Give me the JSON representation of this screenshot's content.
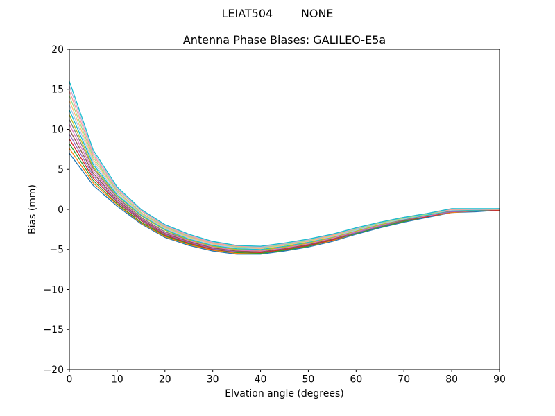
{
  "header": {
    "suptitle": "LEIAT504        NONE",
    "title": "Antenna Phase Biases: GALILEO-E5a"
  },
  "chart_data": {
    "type": "line",
    "suptitle": "LEIAT504        NONE",
    "title": "Antenna Phase Biases: GALILEO-E5a",
    "xlabel": "Elvation angle (degrees)",
    "ylabel": "Bias (mm)",
    "xlim": [
      0,
      90
    ],
    "ylim": [
      -20,
      20
    ],
    "xticks": [
      0,
      10,
      20,
      30,
      40,
      50,
      60,
      70,
      80,
      90
    ],
    "yticks": [
      -20,
      -15,
      -10,
      -5,
      0,
      5,
      10,
      15,
      20
    ],
    "grid": false,
    "legend": "none",
    "frame_color": "#000000",
    "x": [
      0,
      5,
      10,
      15,
      20,
      25,
      30,
      35,
      40,
      45,
      50,
      55,
      60,
      65,
      70,
      75,
      80,
      85,
      90
    ],
    "series": [
      {
        "name": "curve-01",
        "color": "#1f77b4",
        "values": [
          7.0,
          3.0,
          0.4,
          -1.8,
          -3.5,
          -4.5,
          -5.2,
          -5.6,
          -5.6,
          -5.2,
          -4.7,
          -4.0,
          -3.1,
          -2.3,
          -1.6,
          -1.0,
          -0.4,
          -0.3,
          -0.1
        ]
      },
      {
        "name": "curve-02",
        "color": "#ff7f0e",
        "values": [
          7.6,
          3.3,
          0.6,
          -1.7,
          -3.4,
          -4.4,
          -5.1,
          -5.5,
          -5.5,
          -5.1,
          -4.6,
          -3.9,
          -3.0,
          -2.2,
          -1.5,
          -0.9,
          -0.4,
          -0.2,
          -0.1
        ]
      },
      {
        "name": "curve-03",
        "color": "#2ca02c",
        "values": [
          8.2,
          3.6,
          0.7,
          -1.6,
          -3.3,
          -4.3,
          -5.0,
          -5.4,
          -5.5,
          -5.1,
          -4.6,
          -3.8,
          -3.0,
          -2.2,
          -1.5,
          -0.9,
          -0.3,
          -0.2,
          -0.1
        ]
      },
      {
        "name": "curve-04",
        "color": "#d62728",
        "values": [
          8.8,
          3.9,
          0.9,
          -1.4,
          -3.2,
          -4.2,
          -5.0,
          -5.3,
          -5.4,
          -5.0,
          -4.5,
          -3.8,
          -2.9,
          -2.1,
          -1.4,
          -0.9,
          -0.3,
          -0.2,
          -0.1
        ]
      },
      {
        "name": "curve-05",
        "color": "#9467bd",
        "values": [
          9.4,
          4.2,
          1.0,
          -1.3,
          -3.1,
          -4.1,
          -4.9,
          -5.3,
          -5.3,
          -4.9,
          -4.4,
          -3.7,
          -2.9,
          -2.1,
          -1.4,
          -0.8,
          -0.3,
          -0.2,
          0.0
        ]
      },
      {
        "name": "curve-06",
        "color": "#8c564b",
        "values": [
          10.0,
          4.5,
          1.2,
          -1.2,
          -3.0,
          -4.0,
          -4.8,
          -5.2,
          -5.3,
          -4.9,
          -4.4,
          -3.7,
          -2.8,
          -2.0,
          -1.4,
          -0.8,
          -0.2,
          -0.2,
          0.0
        ]
      },
      {
        "name": "curve-07",
        "color": "#e377c2",
        "values": [
          10.6,
          4.8,
          1.4,
          -1.1,
          -2.9,
          -3.9,
          -4.7,
          -5.1,
          -5.2,
          -4.8,
          -4.3,
          -3.6,
          -2.8,
          -2.0,
          -1.3,
          -0.8,
          -0.2,
          -0.1,
          0.0
        ]
      },
      {
        "name": "curve-08",
        "color": "#7f7f7f",
        "values": [
          11.2,
          5.1,
          1.5,
          -1.0,
          -2.8,
          -3.8,
          -4.6,
          -5.0,
          -5.1,
          -4.7,
          -4.2,
          -3.5,
          -2.7,
          -1.9,
          -1.3,
          -0.7,
          -0.2,
          -0.1,
          0.0
        ]
      },
      {
        "name": "curve-09",
        "color": "#bcbd22",
        "values": [
          11.8,
          5.3,
          1.7,
          -0.8,
          -2.6,
          -3.8,
          -4.6,
          -5.0,
          -5.1,
          -4.7,
          -4.2,
          -3.5,
          -2.7,
          -1.9,
          -1.2,
          -0.7,
          -0.1,
          -0.1,
          0.0
        ]
      },
      {
        "name": "curve-10",
        "color": "#17becf",
        "values": [
          12.4,
          5.6,
          1.8,
          -0.7,
          -2.5,
          -3.7,
          -4.5,
          -4.9,
          -5.0,
          -4.6,
          -4.1,
          -3.4,
          -2.6,
          -1.8,
          -1.2,
          -0.7,
          -0.1,
          -0.1,
          0.0
        ]
      },
      {
        "name": "curve-11",
        "color": "#aec7e8",
        "values": [
          13.0,
          5.9,
          2.0,
          -0.6,
          -2.4,
          -3.6,
          -4.4,
          -4.8,
          -4.9,
          -4.5,
          -4.0,
          -3.4,
          -2.6,
          -1.8,
          -1.2,
          -0.6,
          -0.1,
          0.0,
          0.0
        ]
      },
      {
        "name": "curve-12",
        "color": "#ffbb78",
        "values": [
          13.6,
          6.2,
          2.2,
          -0.5,
          -2.3,
          -3.5,
          -4.3,
          -4.7,
          -4.9,
          -4.5,
          -4.0,
          -3.3,
          -2.5,
          -1.7,
          -1.1,
          -0.6,
          0.0,
          0.0,
          0.0
        ]
      },
      {
        "name": "curve-13",
        "color": "#98df8a",
        "values": [
          14.2,
          6.5,
          2.3,
          -0.4,
          -2.2,
          -3.4,
          -4.2,
          -4.7,
          -4.8,
          -4.4,
          -3.9,
          -3.2,
          -2.5,
          -1.7,
          -1.1,
          -0.6,
          0.0,
          0.0,
          0.0
        ]
      },
      {
        "name": "curve-14",
        "color": "#ff9896",
        "values": [
          14.8,
          6.8,
          2.5,
          -0.2,
          -2.1,
          -3.3,
          -4.2,
          -4.6,
          -4.7,
          -4.3,
          -3.8,
          -3.2,
          -2.4,
          -1.6,
          -1.0,
          -0.5,
          0.0,
          0.0,
          0.0
        ]
      },
      {
        "name": "curve-15",
        "color": "#c5b0d5",
        "values": [
          15.4,
          7.1,
          2.6,
          -0.1,
          -2.0,
          -3.2,
          -4.1,
          -4.5,
          -4.7,
          -4.3,
          -3.8,
          -3.1,
          -2.4,
          -1.6,
          -1.0,
          -0.5,
          0.1,
          0.0,
          0.1
        ]
      },
      {
        "name": "curve-16",
        "color": "#17becf",
        "values": [
          16.0,
          7.4,
          2.8,
          0.0,
          -1.9,
          -3.1,
          -4.0,
          -4.5,
          -4.6,
          -4.2,
          -3.7,
          -3.1,
          -2.3,
          -1.6,
          -1.0,
          -0.5,
          0.1,
          0.1,
          0.1
        ]
      }
    ]
  }
}
